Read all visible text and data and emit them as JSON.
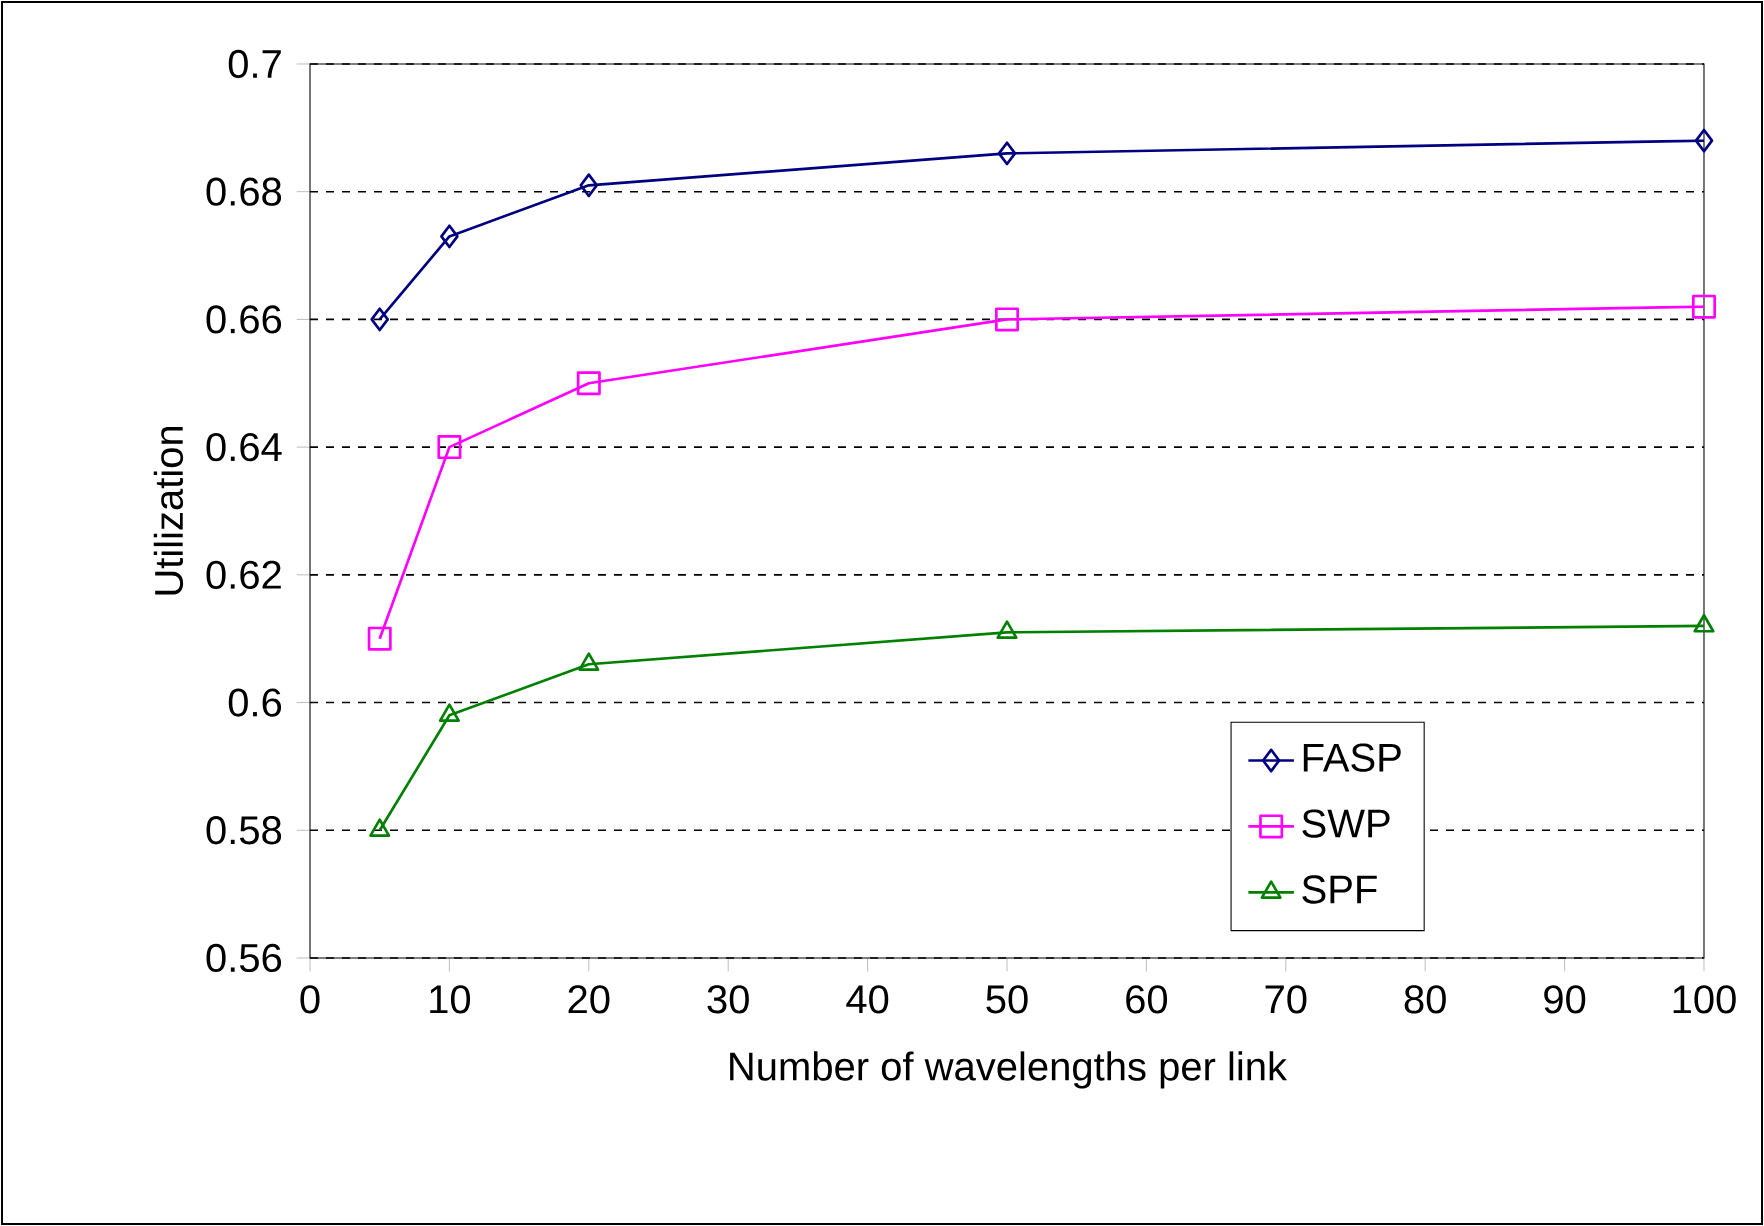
{
  "chart_data": {
    "type": "line",
    "xlabel": "Number of wavelengths per link",
    "ylabel": "Utilization",
    "x": [
      5,
      10,
      20,
      50,
      100
    ],
    "series": [
      {
        "name": "FASP",
        "color": "#000080",
        "marker": "diamond",
        "values": [
          0.66,
          0.673,
          0.681,
          0.686,
          0.688
        ]
      },
      {
        "name": "SWP",
        "color": "#ff00ff",
        "marker": "square",
        "values": [
          0.61,
          0.64,
          0.65,
          0.66,
          0.662
        ]
      },
      {
        "name": "SPF",
        "color": "#008000",
        "marker": "triangle",
        "values": [
          0.58,
          0.598,
          0.606,
          0.611,
          0.612
        ]
      }
    ],
    "xlim": [
      0,
      100
    ],
    "xticks": [
      0,
      10,
      20,
      30,
      40,
      50,
      60,
      70,
      80,
      90,
      100
    ],
    "ylim": [
      0.56,
      0.7
    ],
    "yticks": [
      0.56,
      0.58,
      0.6,
      0.62,
      0.64,
      0.66,
      0.68,
      0.7
    ],
    "grid": "y",
    "legend": "bottom right",
    "line_style": "solid"
  }
}
